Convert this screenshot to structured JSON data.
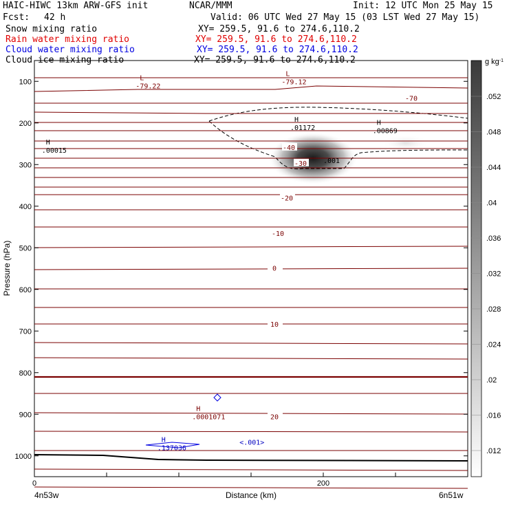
{
  "header": {
    "model": "HAIC-HIWC 13km ARW-GFS init",
    "org": "NCAR/MMM",
    "init": "Init: 12 UTC Mon 25 May 15",
    "fcst_label": "Fcst:",
    "fcst_value": "42 h",
    "valid": "Valid: 06 UTC Wed 27 May 15 (03 LST Wed 27 May 15)",
    "fields": [
      {
        "name": "Snow mixing ratio",
        "color": "#000000",
        "xy": "XY= 259.5, 91.6 to 274.6,110.2"
      },
      {
        "name": "Rain water mixing ratio",
        "color": "#e00000",
        "xy": "XY= 259.5, 91.6 to 274.6,110.2"
      },
      {
        "name": "Cloud water mixing ratio",
        "color": "#0000e0",
        "xy": "XY= 259.5, 91.6 to 274.6,110.2"
      },
      {
        "name": "Cloud ice mixing ratio",
        "color": "#000000",
        "xy": "XY= 259.5, 91.6 to 274.6,110.2"
      }
    ]
  },
  "chart_data": {
    "type": "cross-section",
    "xlabel": "Distance (km)",
    "ylabel": "Pressure (hPa)",
    "x_range": [
      0,
      300
    ],
    "y_range": [
      1050,
      50
    ],
    "x_ticks": [
      0,
      200
    ],
    "y_ticks": [
      100,
      200,
      300,
      400,
      500,
      600,
      700,
      800,
      900,
      1000
    ],
    "x_end_labels": {
      "left": "4n53w",
      "right": "6n51w"
    },
    "colorbar": {
      "unit": "g kg",
      "unit_exp": "-1",
      "labels": [
        ".052",
        ".048",
        ".044",
        ".04",
        ".036",
        ".032",
        ".028",
        ".024",
        ".02",
        ".016",
        ".012"
      ]
    },
    "temperature_contours": [
      {
        "value": "-70",
        "p": 140
      },
      {
        "value": "-40",
        "p": 258
      },
      {
        "value": "-30",
        "p": 296
      },
      {
        "value": "-20",
        "p": 380
      },
      {
        "value": "-10",
        "p": 465
      },
      {
        "value": "0",
        "p": 548
      },
      {
        "value": "10",
        "p": 683
      },
      {
        "value": "20",
        "p": 905
      }
    ],
    "annotations": [
      {
        "kind": "L",
        "value": "-79.22",
        "x": 73,
        "p": 110
      },
      {
        "kind": "L",
        "value": "-79.12",
        "x": 174,
        "p": 100
      },
      {
        "kind": "H",
        "value": ".00015",
        "x": 8,
        "p": 265
      },
      {
        "kind": "H",
        "value": ".01172",
        "x": 180,
        "p": 210
      },
      {
        "kind": "H",
        "value": ".00869",
        "x": 237,
        "p": 218
      },
      {
        "kind": "value",
        "value": ".001",
        "x": 200,
        "p": 296
      },
      {
        "kind": "H",
        "value": ".0001071",
        "x": 112,
        "p": 905
      },
      {
        "kind": "H",
        "value": ".137036",
        "x": 88,
        "p": 980
      },
      {
        "kind": "value",
        "value": "<.001>",
        "x": 142,
        "p": 973
      }
    ]
  }
}
